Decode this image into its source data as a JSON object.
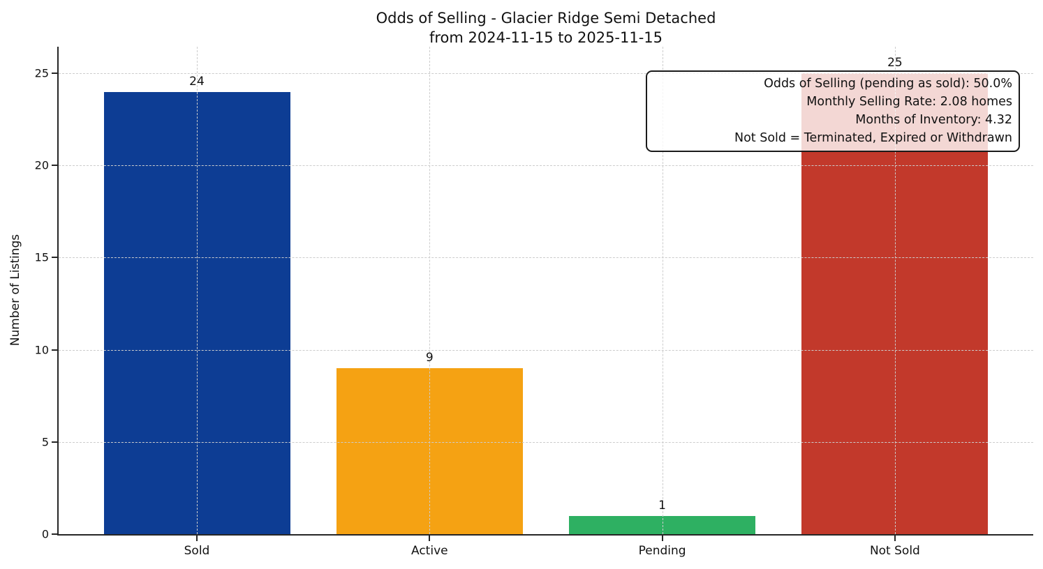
{
  "title": {
    "line1": "Odds of Selling - Glacier Ridge Semi Detached",
    "line2": "from 2024-11-15 to 2025-11-15"
  },
  "chart_data": {
    "type": "bar",
    "title": "Odds of Selling - Glacier Ridge Semi Detached\nfrom 2024-11-15 to 2025-11-15",
    "categories": [
      "Sold",
      "Active",
      "Pending",
      "Not Sold"
    ],
    "values": [
      24,
      9,
      1,
      25
    ],
    "bar_colors": [
      "#0d3d94",
      "#f5a213",
      "#2eb062",
      "#c2392b"
    ],
    "value_labels": [
      "24",
      "9",
      "1",
      "25"
    ],
    "xlabel": "",
    "ylabel": "Number of Listings",
    "ylim": [
      0,
      26.44
    ],
    "yticks": [
      0,
      5,
      10,
      15,
      20,
      25
    ],
    "grid": "both-dashed",
    "legend": "none",
    "annotation_lines": [
      "Odds of Selling (pending as sold): 50.0%",
      "Monthly Selling Rate: 2.08 homes",
      "Months of Inventory: 4.32",
      "Not Sold = Terminated, Expired or Withdrawn"
    ]
  },
  "colors": {
    "background": "#ffffff",
    "grid": "#cccccc",
    "axis": "#262626",
    "text": "#111111",
    "annotation_border": "#1a1a1a"
  }
}
